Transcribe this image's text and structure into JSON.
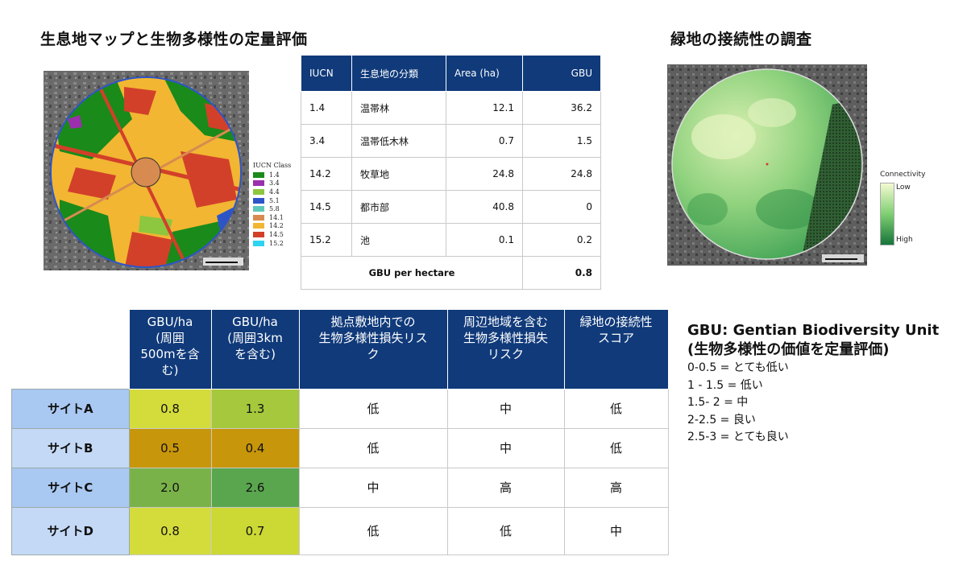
{
  "titles": {
    "left": "生息地マップと生物多様性の定量評価",
    "right": "緑地の接続性の調査"
  },
  "iucn_legend": {
    "title": "IUCN Class",
    "items": [
      {
        "label": "1.4",
        "color": "#1a8a1a"
      },
      {
        "label": "3.4",
        "color": "#9b2fae"
      },
      {
        "label": "4.4",
        "color": "#8dc63f"
      },
      {
        "label": "5.1",
        "color": "#2e55c8"
      },
      {
        "label": "5.8",
        "color": "#5ec8b8"
      },
      {
        "label": "14.1",
        "color": "#d88b50"
      },
      {
        "label": "14.2",
        "color": "#f2b632"
      },
      {
        "label": "14.5",
        "color": "#d2402a"
      },
      {
        "label": "15.2",
        "color": "#2ed3f0"
      }
    ]
  },
  "iucn_table": {
    "headers": [
      "IUCN",
      "生息地の分類",
      "Area (ha)",
      "GBU"
    ],
    "rows": [
      [
        "1.4",
        "温帯林",
        "12.1",
        "36.2"
      ],
      [
        "3.4",
        "温帯低木林",
        "0.7",
        "1.5"
      ],
      [
        "14.2",
        "牧草地",
        "24.8",
        "24.8"
      ],
      [
        "14.5",
        "都市部",
        "40.8",
        "0"
      ],
      [
        "15.2",
        "池",
        "0.1",
        "0.2"
      ]
    ],
    "footer_label": "GBU per hectare",
    "footer_value": "0.8"
  },
  "connectivity_legend": {
    "title": "Connectivity",
    "low": "Low",
    "high": "High"
  },
  "sites_table": {
    "headers": [
      "GBU/ha\n(周囲\n500mを含\nむ)",
      "GBU/ha\n(周囲3km\nを含む)",
      "拠点敷地内での\n生物多様性損失リス\nク",
      "周辺地域を含む\n生物多様性損失\nリスク",
      "緑地の接続性\nスコア"
    ],
    "rows": [
      {
        "site": "サイトA",
        "gbu500": "0.8",
        "gbu3k": "1.3",
        "risk_site": "低",
        "risk_area": "中",
        "conn": "低",
        "color500": "#d4dc3c",
        "color3k": "#a5c83c"
      },
      {
        "site": "サイトB",
        "gbu500": "0.5",
        "gbu3k": "0.4",
        "risk_site": "低",
        "risk_area": "中",
        "conn": "低",
        "color500": "#c8960a",
        "color3k": "#c8960a"
      },
      {
        "site": "サイトC",
        "gbu500": "2.0",
        "gbu3k": "2.6",
        "risk_site": "中",
        "risk_area": "高",
        "conn": "高",
        "color500": "#7ab24a",
        "color3k": "#5aa64e"
      },
      {
        "site": "サイトD",
        "gbu500": "0.8",
        "gbu3k": "0.7",
        "risk_site": "低",
        "risk_area": "低",
        "conn": "中",
        "color500": "#d4dc3c",
        "color3k": "#ccd834"
      }
    ]
  },
  "gbu_legend": {
    "heading": "GBU: Gentian Biodiversity Unit",
    "subheading": "(生物多様性の価値を定量評価)",
    "scale": [
      "0-0.5 = とても低い",
      "1 - 1.5 = 低い",
      "1.5- 2 = 中",
      "2-2.5 = 良い",
      "2.5-3 = とても良い"
    ]
  }
}
